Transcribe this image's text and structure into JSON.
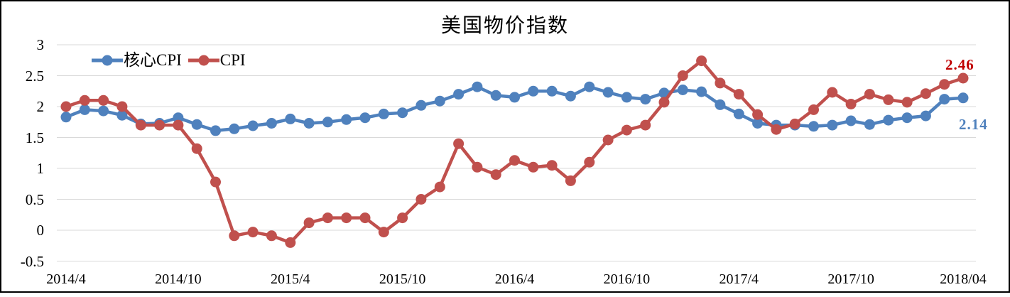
{
  "title": "美国物价指数",
  "colors": {
    "core_cpi": "#4F81BD",
    "cpi": "#C0504D",
    "cpi_end_label": "#C00000",
    "core_end_label": "#4F81BD",
    "gridline": "#D9D9D9",
    "border": "#000000",
    "background": "#FFFFFF"
  },
  "chart_data": {
    "type": "line",
    "title": "美国物价指数",
    "xlabel": "",
    "ylabel": "",
    "ylim": [
      -0.5,
      3
    ],
    "grid": true,
    "legend_position": "top-left-inside",
    "x": [
      "2014/4",
      "2014/5",
      "2014/6",
      "2014/7",
      "2014/8",
      "2014/9",
      "2014/10",
      "2014/11",
      "2014/12",
      "2015/1",
      "2015/2",
      "2015/3",
      "2015/4",
      "2015/5",
      "2015/6",
      "2015/7",
      "2015/8",
      "2015/9",
      "2015/10",
      "2015/11",
      "2015/12",
      "2016/1",
      "2016/2",
      "2016/3",
      "2016/4",
      "2016/5",
      "2016/6",
      "2016/7",
      "2016/8",
      "2016/9",
      "2016/10",
      "2016/11",
      "2016/12",
      "2017/1",
      "2017/2",
      "2017/3",
      "2017/4",
      "2017/5",
      "2017/6",
      "2017/7",
      "2017/8",
      "2017/9",
      "2017/10",
      "2017/11",
      "2017/12",
      "2018/1",
      "2018/2",
      "2018/3",
      "2018/4"
    ],
    "x_ticks": [
      {
        "index": 0,
        "label": "2014/4"
      },
      {
        "index": 6,
        "label": "2014/10"
      },
      {
        "index": 12,
        "label": "2015/4"
      },
      {
        "index": 18,
        "label": "2015/10"
      },
      {
        "index": 24,
        "label": "2016/4"
      },
      {
        "index": 30,
        "label": "2016/10"
      },
      {
        "index": 36,
        "label": "2017/4"
      },
      {
        "index": 42,
        "label": "2017/10"
      },
      {
        "index": 48,
        "label": "2018/04"
      }
    ],
    "y_ticks": [
      3,
      2.5,
      2,
      1.5,
      1,
      0.5,
      0,
      -0.5
    ],
    "y_tick_labels": [
      "3",
      "2.5",
      "2",
      "1.5",
      "1",
      "0.5",
      "0",
      "-0.5"
    ],
    "series": [
      {
        "name": "核心CPI",
        "color": "#4F81BD",
        "values": [
          1.83,
          1.95,
          1.93,
          1.86,
          1.72,
          1.73,
          1.82,
          1.71,
          1.61,
          1.64,
          1.69,
          1.73,
          1.8,
          1.73,
          1.75,
          1.79,
          1.82,
          1.88,
          1.9,
          2.02,
          2.09,
          2.2,
          2.32,
          2.18,
          2.15,
          2.25,
          2.25,
          2.17,
          2.32,
          2.23,
          2.15,
          2.12,
          2.22,
          2.27,
          2.24,
          2.03,
          1.88,
          1.73,
          1.7,
          1.7,
          1.68,
          1.7,
          1.77,
          1.71,
          1.78,
          1.82,
          1.85,
          2.12,
          2.14
        ]
      },
      {
        "name": "CPI",
        "color": "#C0504D",
        "values": [
          2.0,
          2.1,
          2.1,
          2.0,
          1.7,
          1.7,
          1.7,
          1.32,
          0.78,
          -0.09,
          -0.03,
          -0.09,
          -0.2,
          0.12,
          0.2,
          0.2,
          0.2,
          -0.03,
          0.2,
          0.5,
          0.7,
          1.4,
          1.02,
          0.9,
          1.13,
          1.02,
          1.05,
          0.8,
          1.1,
          1.46,
          1.62,
          1.7,
          2.07,
          2.5,
          2.74,
          2.38,
          2.2,
          1.87,
          1.63,
          1.72,
          1.95,
          2.23,
          2.04,
          2.2,
          2.11,
          2.07,
          2.21,
          2.36,
          2.46
        ]
      }
    ],
    "annotations": [
      {
        "series": "CPI",
        "x": "2018/4",
        "text": "2.46",
        "color": "#C00000"
      },
      {
        "series": "核心CPI",
        "x": "2018/4",
        "text": "2.14",
        "color": "#4F81BD"
      }
    ]
  }
}
